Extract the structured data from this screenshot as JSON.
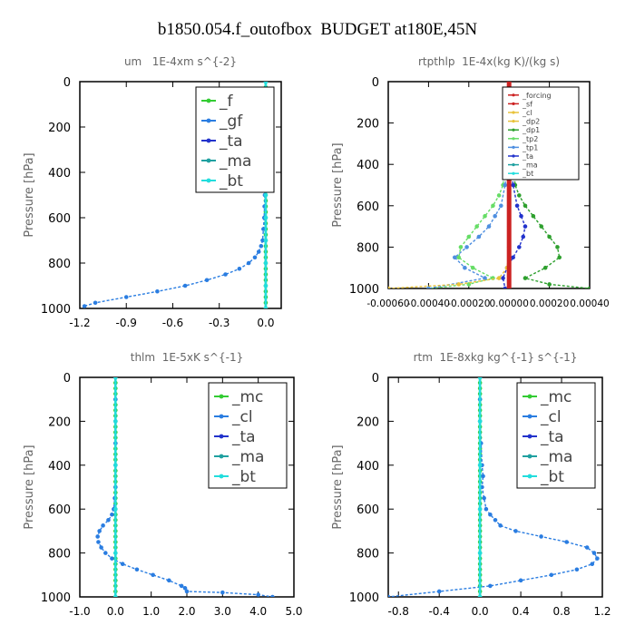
{
  "figure_title": "b1850.054.f_outofbox  BUDGET at180E,45N",
  "colors": {
    "frame": "#000000",
    "title_text": "#666666",
    "green": "#33cc33",
    "red": "#cc2222",
    "blue": "#2a7de1",
    "yellow": "#e8c23a",
    "dark_green": "#2ea02e",
    "light_green": "#66dd66",
    "light_blue": "#4f8fe0",
    "navy": "#2233cc",
    "teal": "#1fa0a0",
    "cyan": "#22dddd"
  },
  "chart_data": [
    {
      "type": "line",
      "title": "um   1E-4xm s^{-2}",
      "ylabel": "Pressure [hPa]",
      "xlabel": "",
      "xlim": [
        -1.2,
        0.1
      ],
      "ylim": [
        1000,
        0
      ],
      "xticks": [
        "-1.2",
        "-0.9",
        "-0.6",
        "-0.3",
        "0.0"
      ],
      "xtick_values": [
        -1.2,
        -0.9,
        -0.6,
        -0.3,
        0.0
      ],
      "yticks": [
        "0",
        "200",
        "400",
        "600",
        "800",
        "1000"
      ],
      "ytick_values": [
        0,
        200,
        400,
        600,
        800,
        1000
      ],
      "legend": {
        "position": "top-right",
        "size": "large",
        "entries": [
          {
            "label": "_f",
            "color": "#33cc33"
          },
          {
            "label": "_gf",
            "color": "#2a7de1"
          },
          {
            "label": "_ta",
            "color": "#2233cc"
          },
          {
            "label": "_ma",
            "color": "#1fa0a0"
          },
          {
            "label": "_bt",
            "color": "#22dddd"
          }
        ]
      },
      "series": [
        {
          "name": "_f",
          "color": "#33cc33",
          "pressure": [
            0,
            25,
            50,
            75,
            100,
            125,
            150,
            175,
            200,
            225,
            250,
            275,
            300,
            325,
            350,
            375,
            400,
            425,
            450,
            475,
            500,
            525,
            550,
            575,
            600,
            625,
            650,
            675,
            700,
            725,
            750,
            775,
            800,
            825,
            850,
            875,
            900,
            925,
            950,
            975,
            1000
          ],
          "values": [
            0,
            0,
            0,
            0,
            0,
            0,
            0,
            0,
            0,
            0,
            0,
            0,
            0,
            0,
            0,
            0,
            0,
            0,
            0,
            0,
            0,
            0,
            0,
            0,
            0,
            0,
            0,
            0,
            0,
            0,
            0,
            0,
            0,
            0,
            0,
            0,
            0,
            0,
            0,
            0,
            0
          ]
        },
        {
          "name": "_gf",
          "color": "#2a7de1",
          "pressure": [
            0,
            50,
            100,
            150,
            200,
            250,
            300,
            350,
            400,
            450,
            500,
            550,
            600,
            650,
            700,
            725,
            750,
            775,
            800,
            825,
            850,
            875,
            900,
            925,
            950,
            975,
            990
          ],
          "values": [
            0,
            0,
            0,
            0,
            0,
            0,
            0,
            0,
            -0.002,
            -0.004,
            -0.006,
            -0.008,
            -0.01,
            -0.015,
            -0.02,
            -0.03,
            -0.045,
            -0.07,
            -0.11,
            -0.17,
            -0.26,
            -0.38,
            -0.52,
            -0.7,
            -0.9,
            -1.1,
            -1.17
          ]
        },
        {
          "name": "_bt",
          "color": "#22dddd",
          "pressure": [
            0,
            100,
            200,
            300,
            400,
            500,
            600,
            700,
            800,
            900,
            1000
          ],
          "values": [
            0,
            0,
            0,
            0,
            0,
            0,
            0,
            0,
            0,
            0,
            0
          ]
        }
      ]
    },
    {
      "type": "line",
      "title": "rtpthlp  1E-4x(kg K)/(kg s)",
      "ylabel": "Pressure [hPa]",
      "xlabel": "",
      "xlim": [
        -0.0006,
        0.0004
      ],
      "ylim": [
        1000,
        0
      ],
      "xticks": [
        "-0.00060",
        "-0.00040",
        "-0.00020",
        "0.00000",
        "0.00020",
        "0.00040"
      ],
      "xtick_values": [
        -0.0006,
        -0.0004,
        -0.0002,
        0.0,
        0.0002,
        0.0004
      ],
      "yticks": [
        "0",
        "200",
        "400",
        "600",
        "800",
        "1000"
      ],
      "ytick_values": [
        0,
        200,
        400,
        600,
        800,
        1000
      ],
      "legend": {
        "position": "top-right",
        "size": "small",
        "entries": [
          {
            "label": "_forcing",
            "color": "#cc2222"
          },
          {
            "label": "_sf",
            "color": "#cc2222"
          },
          {
            "label": "_cl",
            "color": "#e8c23a"
          },
          {
            "label": "_dp2",
            "color": "#e8c23a"
          },
          {
            "label": "_dp1",
            "color": "#2ea02e"
          },
          {
            "label": "_tp2",
            "color": "#66dd66"
          },
          {
            "label": "_tp1",
            "color": "#4f8fe0"
          },
          {
            "label": "_ta",
            "color": "#2233cc"
          },
          {
            "label": "_ma",
            "color": "#1fa0a0"
          },
          {
            "label": "_bt",
            "color": "#22dddd"
          }
        ]
      },
      "series": [
        {
          "name": "_dp1",
          "color": "#2ea02e",
          "pressure": [
            0,
            100,
            200,
            300,
            400,
            500,
            550,
            600,
            650,
            700,
            750,
            800,
            850,
            900,
            950,
            980,
            1000
          ],
          "values": [
            0,
            0,
            5e-06,
            1e-05,
            2e-05,
            3e-05,
            5e-05,
            8e-05,
            0.00012,
            0.00016,
            0.0002,
            0.00024,
            0.00025,
            0.00018,
            8e-05,
            0.0002,
            0.0004
          ]
        },
        {
          "name": "_tp2",
          "color": "#66dd66",
          "pressure": [
            0,
            100,
            200,
            300,
            400,
            500,
            550,
            600,
            650,
            700,
            750,
            800,
            850,
            900,
            950,
            980,
            1000
          ],
          "values": [
            0,
            0,
            -5e-06,
            -1e-05,
            -2e-05,
            -3e-05,
            -5e-05,
            -8e-05,
            -0.00012,
            -0.00016,
            -0.0002,
            -0.00024,
            -0.00025,
            -0.00018,
            -8e-05,
            -0.0002,
            -0.0004
          ]
        },
        {
          "name": "_tp1",
          "color": "#4f8fe0",
          "pressure": [
            0,
            200,
            400,
            500,
            600,
            650,
            700,
            750,
            800,
            850,
            900,
            950,
            1000
          ],
          "values": [
            0,
            -5e-06,
            -1e-05,
            -2e-05,
            -4e-05,
            -7e-05,
            -0.0001,
            -0.00015,
            -0.00021,
            -0.00027,
            -0.00022,
            -0.00012,
            -0.0004
          ]
        },
        {
          "name": "_ta",
          "color": "#2233cc",
          "pressure": [
            0,
            200,
            400,
            500,
            600,
            650,
            700,
            750,
            800,
            850,
            900,
            950,
            1000
          ],
          "values": [
            0,
            5e-06,
            1e-05,
            2e-05,
            4e-05,
            6e-05,
            8e-05,
            7e-05,
            5e-05,
            2e-05,
            -1e-05,
            -3e-05,
            -2e-05
          ]
        },
        {
          "name": "_cl",
          "color": "#e8c23a",
          "pressure": [
            0,
            200,
            400,
            600,
            800,
            900,
            950,
            980,
            1000
          ],
          "values": [
            0,
            0,
            0,
            0,
            0,
            -1e-05,
            -5e-05,
            -0.00025,
            -0.0006
          ]
        },
        {
          "name": "_forcing",
          "color": "#cc2222",
          "pressure": [
            0,
            100,
            200,
            300,
            400,
            500,
            600,
            700,
            800,
            900,
            1000
          ],
          "values": [
            0,
            0,
            0,
            0,
            0,
            0,
            0,
            0,
            0,
            0,
            0
          ]
        }
      ]
    },
    {
      "type": "line",
      "title": "thlm  1E-5xK s^{-1}",
      "ylabel": "Pressure [hPa]",
      "xlabel": "",
      "xlim": [
        -1.0,
        5.0
      ],
      "ylim": [
        1000,
        0
      ],
      "xticks": [
        "-1.0",
        "0.0",
        "1.0",
        "2.0",
        "3.0",
        "4.0",
        "5.0"
      ],
      "xtick_values": [
        -1.0,
        0.0,
        1.0,
        2.0,
        3.0,
        4.0,
        5.0
      ],
      "yticks": [
        "0",
        "200",
        "400",
        "600",
        "800",
        "1000"
      ],
      "ytick_values": [
        0,
        200,
        400,
        600,
        800,
        1000
      ],
      "legend": {
        "position": "top-right",
        "size": "large",
        "entries": [
          {
            "label": "_mc",
            "color": "#33cc33"
          },
          {
            "label": "_cl",
            "color": "#2a7de1"
          },
          {
            "label": "_ta",
            "color": "#2233cc"
          },
          {
            "label": "_ma",
            "color": "#1fa0a0"
          },
          {
            "label": "_bt",
            "color": "#22dddd"
          }
        ]
      },
      "series": [
        {
          "name": "_mc",
          "color": "#33cc33",
          "pressure": [
            0,
            25,
            50,
            75,
            100,
            125,
            150,
            175,
            200,
            225,
            250,
            275,
            300,
            325,
            350,
            375,
            400,
            425,
            450,
            475,
            500,
            525,
            550,
            575,
            600,
            625,
            650,
            675,
            700,
            725,
            750,
            775,
            800,
            825,
            850,
            875,
            900,
            925,
            950,
            975,
            1000
          ],
          "values": [
            0,
            0,
            0,
            0,
            0,
            0,
            0,
            0,
            0,
            0,
            0,
            0,
            0,
            0,
            0,
            0,
            0,
            0,
            0,
            0,
            0,
            0,
            0,
            0,
            0,
            0,
            0,
            0,
            0,
            0,
            0,
            0,
            0,
            0,
            0,
            0,
            0,
            0,
            0,
            0,
            0
          ]
        },
        {
          "name": "_cl",
          "color": "#2a7de1",
          "pressure": [
            0,
            100,
            200,
            300,
            400,
            500,
            550,
            600,
            625,
            650,
            675,
            700,
            725,
            750,
            775,
            800,
            825,
            850,
            875,
            900,
            925,
            950,
            960,
            975,
            980,
            990,
            1000
          ],
          "values": [
            0,
            0,
            0,
            0,
            0,
            0,
            -0.02,
            -0.05,
            -0.1,
            -0.2,
            -0.35,
            -0.45,
            -0.5,
            -0.48,
            -0.4,
            -0.28,
            -0.1,
            0.2,
            0.6,
            1.05,
            1.5,
            1.85,
            1.95,
            2.0,
            3.0,
            4.0,
            4.4
          ]
        },
        {
          "name": "_bt",
          "color": "#22dddd",
          "pressure": [
            0,
            200,
            400,
            600,
            800,
            1000
          ],
          "values": [
            0,
            0,
            0,
            0,
            0,
            0
          ]
        }
      ]
    },
    {
      "type": "line",
      "title": "rtm  1E-8xkg kg^{-1} s^{-1}",
      "ylabel": "Pressure [hPa]",
      "xlabel": "",
      "xlim": [
        -0.9,
        1.2
      ],
      "ylim": [
        1000,
        0
      ],
      "xticks": [
        "-0.8",
        "-0.4",
        "0.0",
        "0.4",
        "0.8",
        "1.2"
      ],
      "xtick_values": [
        -0.8,
        -0.4,
        0.0,
        0.4,
        0.8,
        1.2
      ],
      "yticks": [
        "0",
        "200",
        "400",
        "600",
        "800",
        "1000"
      ],
      "ytick_values": [
        0,
        200,
        400,
        600,
        800,
        1000
      ],
      "legend": {
        "position": "top-right",
        "size": "large",
        "entries": [
          {
            "label": "_mc",
            "color": "#33cc33"
          },
          {
            "label": "_cl",
            "color": "#2a7de1"
          },
          {
            "label": "_ta",
            "color": "#2233cc"
          },
          {
            "label": "_ma",
            "color": "#1fa0a0"
          },
          {
            "label": "_bt",
            "color": "#22dddd"
          }
        ]
      },
      "series": [
        {
          "name": "_mc",
          "color": "#33cc33",
          "pressure": [
            0,
            25,
            50,
            75,
            100,
            125,
            150,
            175,
            200,
            225,
            250,
            275,
            300,
            325,
            350,
            375,
            400,
            425,
            450,
            475,
            500,
            525,
            550,
            575,
            600,
            625,
            650,
            675,
            700,
            725,
            750,
            775,
            800,
            825,
            850,
            875,
            900,
            925,
            950,
            975,
            1000
          ],
          "values": [
            0,
            0,
            0,
            0,
            0,
            0,
            0,
            0,
            0,
            0,
            0,
            0,
            0,
            0,
            0,
            0,
            0,
            0,
            0,
            0,
            0,
            0,
            0,
            0,
            0,
            0,
            0,
            0,
            0,
            0,
            0,
            0,
            0,
            0,
            0,
            0,
            0,
            0,
            0,
            0,
            0
          ]
        },
        {
          "name": "_cl",
          "color": "#2a7de1",
          "pressure": [
            0,
            100,
            200,
            300,
            400,
            450,
            500,
            550,
            600,
            625,
            650,
            675,
            700,
            725,
            750,
            775,
            800,
            825,
            850,
            875,
            900,
            925,
            950,
            975,
            1000
          ],
          "values": [
            0,
            0,
            0,
            0.01,
            0.02,
            0.03,
            0.02,
            0.04,
            0.06,
            0.1,
            0.15,
            0.2,
            0.35,
            0.6,
            0.85,
            1.05,
            1.12,
            1.15,
            1.1,
            0.95,
            0.7,
            0.4,
            0.1,
            -0.4,
            -0.9
          ]
        },
        {
          "name": "_bt",
          "color": "#22dddd",
          "pressure": [
            0,
            200,
            400,
            600,
            800,
            1000
          ],
          "values": [
            0,
            0,
            0,
            0,
            0,
            0
          ]
        }
      ]
    }
  ]
}
